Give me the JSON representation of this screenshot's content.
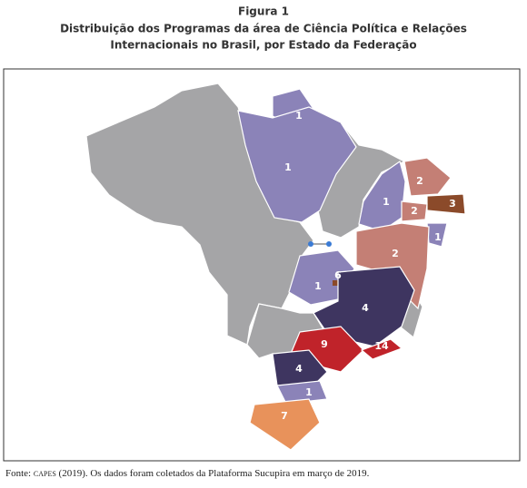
{
  "figure": {
    "label": "Figura 1",
    "title_lines": [
      "Distribuição dos Programas da área de Ciência Política e Relações",
      "Internacionais no Brasil, por Estado da Federação"
    ]
  },
  "map": {
    "labels": [
      1,
      1,
      1,
      2,
      3,
      2,
      1,
      2,
      6,
      1,
      4,
      9,
      14,
      4,
      1,
      7
    ]
  },
  "source": {
    "prefix": "Fonte:",
    "org": "capes",
    "rest": "(2019). Os dados foram coletados da Plataforma Sucupira em março de 2019."
  }
}
